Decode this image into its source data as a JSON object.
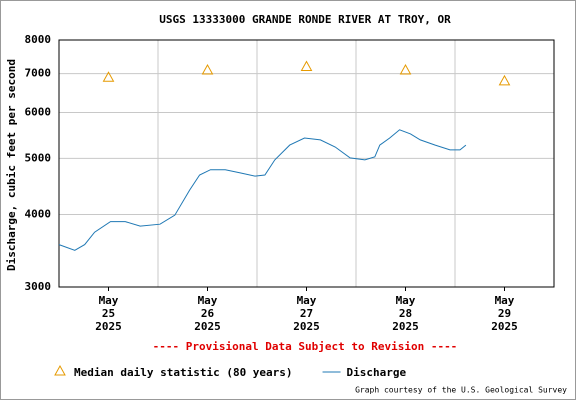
{
  "chart_data": {
    "type": "line",
    "title": "USGS 13333000 GRANDE RONDE RIVER AT TROY, OR",
    "y_label": "Discharge, cubic feet per second",
    "annotation": "---- Provisional Data Subject to Revision ----",
    "credit": "Graph courtesy of the U.S. Geological Survey",
    "log_y": true,
    "grid": true,
    "ylim": [
      3000,
      8000
    ],
    "yticks": [
      3000,
      4000,
      5000,
      6000,
      7000,
      8000
    ],
    "xlim": [
      24.5,
      29.5
    ],
    "xticks": [
      {
        "value": 25,
        "label": [
          "May",
          "25",
          "2025"
        ]
      },
      {
        "value": 26,
        "label": [
          "May",
          "26",
          "2025"
        ]
      },
      {
        "value": 27,
        "label": [
          "May",
          "27",
          "2025"
        ]
      },
      {
        "value": 28,
        "label": [
          "May",
          "28",
          "2025"
        ]
      },
      {
        "value": 29,
        "label": [
          "May",
          "29",
          "2025"
        ]
      }
    ],
    "xgrid": [
      25.5,
      26.5,
      27.5,
      28.5
    ],
    "series": [
      {
        "name": "Median daily statistic (80 years)",
        "color": "#e69a00",
        "marker": "triangle",
        "x": [
          25,
          26,
          27,
          28,
          29
        ],
        "values": [
          6900,
          7100,
          7200,
          7100,
          6800
        ]
      },
      {
        "name": "Discharge",
        "color": "#1f78b4",
        "marker": "line",
        "x": [
          24.5,
          24.66,
          24.76,
          24.86,
          25.02,
          25.17,
          25.32,
          25.52,
          25.67,
          25.82,
          25.92,
          26.03,
          26.18,
          26.33,
          26.48,
          26.58,
          26.68,
          26.83,
          26.98,
          27.14,
          27.29,
          27.44,
          27.59,
          27.69,
          27.74,
          27.84,
          27.94,
          28.05,
          28.15,
          28.3,
          28.45,
          28.55,
          28.61
        ],
        "values": [
          3550,
          3470,
          3550,
          3730,
          3890,
          3890,
          3820,
          3850,
          3990,
          4410,
          4680,
          4780,
          4780,
          4720,
          4660,
          4680,
          4970,
          5270,
          5420,
          5380,
          5230,
          5010,
          4970,
          5030,
          5270,
          5420,
          5600,
          5510,
          5380,
          5270,
          5170,
          5170,
          5270
        ]
      }
    ]
  }
}
